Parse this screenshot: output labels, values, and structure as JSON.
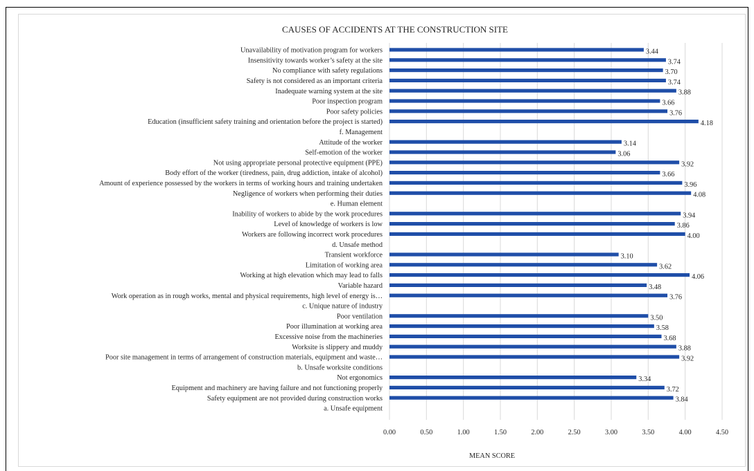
{
  "chart_data": {
    "type": "bar",
    "orientation": "horizontal",
    "title": "CAUSES OF ACCIDENTS AT THE CONSTRUCTION SITE",
    "xlabel": "MEAN SCORE",
    "ylabel": "",
    "xlim": [
      0,
      4.5
    ],
    "x_ticks": [
      "0.00",
      "0.50",
      "1.00",
      "1.50",
      "2.00",
      "2.50",
      "3.00",
      "3.50",
      "4.00",
      "4.50"
    ],
    "grid": true,
    "legend": "none",
    "bar_color": "#1f4ea8",
    "categories": [
      "Unavailability of motivation program for workers",
      "Insensitivity towards worker’s safety at the site",
      "No compliance with safety regulations",
      "Safety is not considered as an important criteria",
      "Inadequate warning system at the site",
      "Poor inspection program",
      "Poor safety policies",
      "Education (insufficient safety training and orientation before the project is started)",
      "f.        Management",
      "Attitude of the worker",
      "Self-emotion of the worker",
      "Not using appropriate personal protective equipment (PPE)",
      "Body effort of the worker (tiredness, pain, drug addiction, intake of alcohol)",
      "Amount of experience possessed by the workers in terms of working hours and training undertaken",
      "Negligence of workers when performing their duties",
      "e.        Human element",
      "Inability of workers to abide by the work procedures",
      "Level of knowledge of workers is low",
      "Workers are following incorrect work procedures",
      "d.        Unsafe method",
      "Transient workforce",
      "Limitation of working area",
      "Working at high elevation which may lead to falls",
      "Variable hazard",
      "Work operation as in rough works, mental and physical requirements, high level of energy is…",
      "c.        Unique nature of industry",
      "Poor ventilation",
      "Poor illumination at working area",
      "Excessive noise from the machineries",
      "Worksite is slippery and muddy",
      "Poor site management in terms of arrangement of construction materials, equipment and waste…",
      "b.        Unsafe worksite conditions",
      "Not ergonomics",
      "Equipment and machinery are having failure and not functioning properly",
      "Safety equipment are not provided during construction works",
      "a.        Unsafe equipment"
    ],
    "values": [
      3.44,
      3.74,
      3.7,
      3.74,
      3.88,
      3.66,
      3.76,
      4.18,
      null,
      3.14,
      3.06,
      3.92,
      3.66,
      3.96,
      4.08,
      null,
      3.94,
      3.86,
      4.0,
      null,
      3.1,
      3.62,
      4.06,
      3.48,
      3.76,
      null,
      3.5,
      3.58,
      3.68,
      3.88,
      3.92,
      null,
      3.34,
      3.72,
      3.84,
      null
    ],
    "value_labels": [
      "3.44",
      "3.74",
      "3.70",
      "3.74",
      "3.88",
      "3.66",
      "3.76",
      "4.18",
      "",
      "3.14",
      "3.06",
      "3.92",
      "3.66",
      "3.96",
      "4.08",
      "",
      "3.94",
      "3.86",
      "4.00",
      "",
      "3.10",
      "3.62",
      "4.06",
      "3.48",
      "3.76",
      "",
      "3.50",
      "3.58",
      "3.68",
      "3.88",
      "3.92",
      "",
      "3.34",
      "3.72",
      "3.84",
      ""
    ]
  }
}
